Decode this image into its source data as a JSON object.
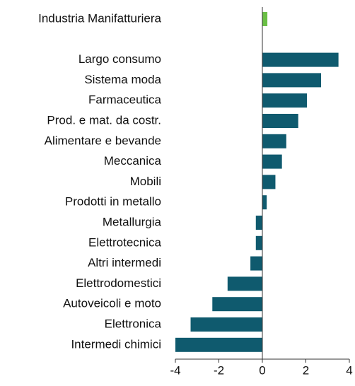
{
  "chart_data": {
    "type": "barh",
    "categories": [
      "Industria Manifatturiera",
      null,
      "Largo consumo",
      "Sistema moda",
      "Farmaceutica",
      "Prod. e mat. da costr.",
      "Alimentare e bevande",
      "Meccanica",
      "Mobili",
      "Prodotti in metallo",
      "Metallurgia",
      "Elettrotecnica",
      "Altri intermedi",
      "Elettrodomestici",
      "Autoveicoli e moto",
      "Elettronica",
      "Intermedi chimici"
    ],
    "values": [
      0.23,
      null,
      3.5,
      2.7,
      2.05,
      1.65,
      1.1,
      0.9,
      0.6,
      0.2,
      -0.3,
      -0.3,
      -0.55,
      -1.6,
      -2.3,
      -3.3,
      -4.0
    ],
    "colors": [
      "#6abf45",
      null,
      "#0f5a6e",
      "#0f5a6e",
      "#0f5a6e",
      "#0f5a6e",
      "#0f5a6e",
      "#0f5a6e",
      "#0f5a6e",
      "#0f5a6e",
      "#0f5a6e",
      "#0f5a6e",
      "#0f5a6e",
      "#0f5a6e",
      "#0f5a6e",
      "#0f5a6e",
      "#0f5a6e"
    ],
    "xlim": [
      -4,
      4
    ],
    "xticks": [
      -4,
      -2,
      0,
      2,
      4
    ]
  }
}
